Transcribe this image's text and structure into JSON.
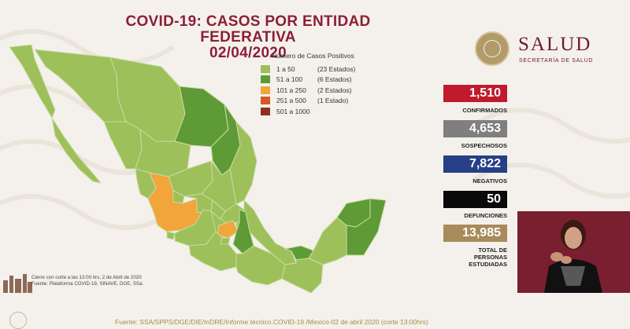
{
  "title": {
    "line1": "COVID-19: CASOS POR ENTIDAD FEDERATIVA",
    "line2": "02/04/2020"
  },
  "legend": {
    "title": "Número de Casos Positivos",
    "items": [
      {
        "range": "1 a 50",
        "count": "(23 Estados)",
        "color": "#9dc05a"
      },
      {
        "range": "51 a 100",
        "count": "(6 Estados)",
        "color": "#5e9b36"
      },
      {
        "range": "101 a 250",
        "count": "(2 Estados)",
        "color": "#f1a53b"
      },
      {
        "range": "251 a 500",
        "count": "(1 Estado)",
        "color": "#d5572a"
      },
      {
        "range": "501 a 1000",
        "count": "",
        "color": "#8f2f1e"
      }
    ]
  },
  "logo": {
    "word": "SALUD",
    "subtitle": "SECRETARÍA DE SALUD",
    "icon": "national-seal-icon"
  },
  "stats": {
    "confirmed": {
      "value": "1,510",
      "label": "CONFIRMADOS",
      "color": "#c11a2d"
    },
    "suspected": {
      "value": "4,653",
      "label": "SOSPECHOSOS",
      "color": "#7f7f7f"
    },
    "negative": {
      "value": "7,822",
      "label": "NEGATIVOS",
      "color": "#263f86"
    },
    "deaths": {
      "value": "50",
      "label": "DEFUNCIONES",
      "color": "#0a0a0a"
    },
    "total": {
      "value": "13,985",
      "label_lines": [
        "TOTAL DE",
        "PERSONAS",
        "ESTUDIADAS"
      ],
      "color": "#a88b5a"
    }
  },
  "footnote": {
    "line1": "Cierre con corte a las 13:00 hrs, 2 de Abril de 2020",
    "line2": "Fuente: Plataforma COVID-19, SINAVE, DGE, SSa."
  },
  "source": "Fuente: SSA/SPPS/DGE/DIE/InDRE/Informe técnico.COVID-19 /Mexico-02 de abril 2020 (corte 13:00hrs)",
  "map": {
    "colors": {
      "low": "#9dc05a",
      "mid": "#5e9b36",
      "high": "#f1a53b",
      "border": "#c9dca5"
    }
  }
}
